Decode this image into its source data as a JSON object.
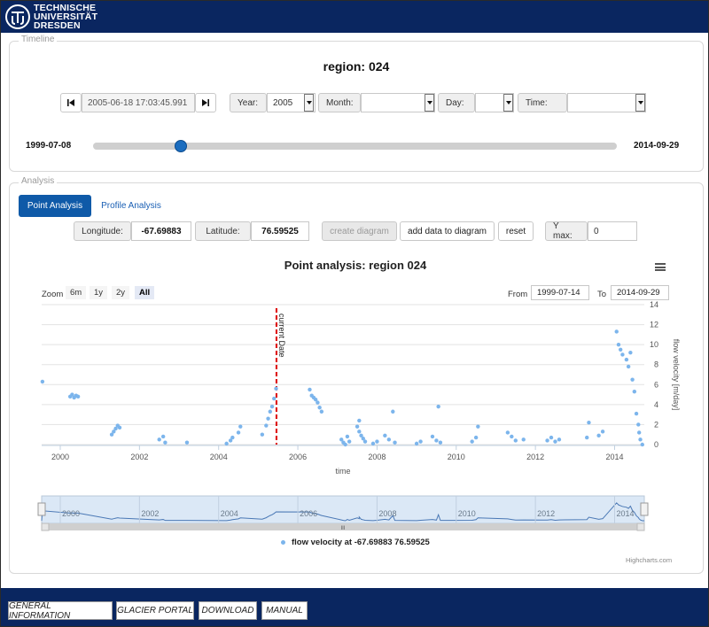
{
  "logo": {
    "line1": "TECHNISCHE",
    "line2": "UNIVERSITÄT",
    "line3": "DRESDEN"
  },
  "timeline": {
    "legend": "Timeline",
    "region_title": "region: 024",
    "current_datetime": "2005-06-18 17:03:45.991",
    "year": {
      "label": "Year:",
      "value": "2005"
    },
    "month": {
      "label": "Month:",
      "value": ""
    },
    "day": {
      "label": "Day:",
      "value": ""
    },
    "time": {
      "label": "Time:",
      "value": ""
    },
    "slider": {
      "start_label": "1999-07-08",
      "end_label": "2014-09-29",
      "position_fraction": 0.17
    }
  },
  "analysis": {
    "legend": "Analysis",
    "tabs": [
      "Point Analysis",
      "Profile Analysis"
    ],
    "longitude": {
      "label": "Longitude:",
      "value": "-67.69883"
    },
    "latitude": {
      "label": "Latitude:",
      "value": "76.59525"
    },
    "buttons": {
      "create": "create diagram",
      "add": "add data to diagram",
      "reset": "reset"
    },
    "ymax": {
      "label": "Y max:",
      "value": "0"
    }
  },
  "chart": {
    "zoom_label": "Zoom",
    "zoom_buttons": [
      "6m",
      "1y",
      "2y",
      "All"
    ],
    "from_label": "From",
    "from_value": "1999-07-14",
    "to_label": "To",
    "to_value": "2014-09-29",
    "legend_label": "flow velocity at -67.69883 76.59525",
    "credits": "Highcharts.com",
    "navigator_scroll_label": "III"
  },
  "chart_data": {
    "type": "scatter",
    "title": "Point analysis: region 024",
    "xlabel": "time",
    "ylabel": "flow velocity [m/day]",
    "xlim": [
      1999.53,
      2014.75
    ],
    "ylim": [
      0,
      14
    ],
    "yticks": [
      0,
      2,
      4,
      6,
      8,
      10,
      12,
      14
    ],
    "xticks": [
      2000,
      2002,
      2004,
      2006,
      2008,
      2010,
      2012,
      2014
    ],
    "plotline": {
      "x": 2005.46,
      "label": "current Date",
      "color": "#dd0000"
    },
    "series": [
      {
        "name": "flow velocity at -67.69883 76.59525",
        "color": "#7cb5ec",
        "points": [
          [
            1999.55,
            6.3
          ],
          [
            2000.25,
            4.8
          ],
          [
            2000.3,
            5.0
          ],
          [
            2000.35,
            4.7
          ],
          [
            2000.4,
            4.9
          ],
          [
            2000.45,
            4.8
          ],
          [
            2001.3,
            1.0
          ],
          [
            2001.35,
            1.3
          ],
          [
            2001.4,
            1.6
          ],
          [
            2001.45,
            1.9
          ],
          [
            2001.5,
            1.7
          ],
          [
            2002.5,
            0.5
          ],
          [
            2002.6,
            0.8
          ],
          [
            2002.65,
            0.2
          ],
          [
            2003.2,
            0.2
          ],
          [
            2004.2,
            0.1
          ],
          [
            2004.3,
            0.4
          ],
          [
            2004.35,
            0.7
          ],
          [
            2004.5,
            1.2
          ],
          [
            2004.55,
            1.8
          ],
          [
            2005.1,
            1.0
          ],
          [
            2005.2,
            1.9
          ],
          [
            2005.25,
            2.6
          ],
          [
            2005.3,
            3.3
          ],
          [
            2005.35,
            3.8
          ],
          [
            2005.4,
            4.6
          ],
          [
            2005.45,
            5.6
          ],
          [
            2006.3,
            5.5
          ],
          [
            2006.35,
            4.9
          ],
          [
            2006.4,
            4.7
          ],
          [
            2006.45,
            4.5
          ],
          [
            2006.5,
            4.2
          ],
          [
            2006.55,
            3.7
          ],
          [
            2006.6,
            3.3
          ],
          [
            2007.1,
            0.5
          ],
          [
            2007.15,
            0.2
          ],
          [
            2007.2,
            0.0
          ],
          [
            2007.25,
            0.8
          ],
          [
            2007.3,
            0.3
          ],
          [
            2007.5,
            1.8
          ],
          [
            2007.55,
            1.3
          ],
          [
            2007.6,
            0.9
          ],
          [
            2007.65,
            0.6
          ],
          [
            2007.7,
            0.3
          ],
          [
            2007.55,
            2.4
          ],
          [
            2007.9,
            0.1
          ],
          [
            2008.0,
            0.3
          ],
          [
            2008.2,
            0.9
          ],
          [
            2008.3,
            0.5
          ],
          [
            2008.4,
            3.3
          ],
          [
            2008.45,
            0.2
          ],
          [
            2009.0,
            0.1
          ],
          [
            2009.1,
            0.3
          ],
          [
            2009.4,
            0.8
          ],
          [
            2009.5,
            0.4
          ],
          [
            2009.6,
            0.2
          ],
          [
            2009.55,
            3.8
          ],
          [
            2010.4,
            0.3
          ],
          [
            2010.5,
            0.7
          ],
          [
            2010.55,
            1.8
          ],
          [
            2011.3,
            1.2
          ],
          [
            2011.4,
            0.8
          ],
          [
            2011.5,
            0.4
          ],
          [
            2011.7,
            0.5
          ],
          [
            2012.3,
            0.4
          ],
          [
            2012.4,
            0.7
          ],
          [
            2012.5,
            0.3
          ],
          [
            2012.6,
            0.5
          ],
          [
            2013.3,
            0.7
          ],
          [
            2013.35,
            2.2
          ],
          [
            2013.6,
            0.9
          ],
          [
            2013.7,
            1.3
          ],
          [
            2014.05,
            11.3
          ],
          [
            2014.1,
            10.0
          ],
          [
            2014.15,
            9.5
          ],
          [
            2014.2,
            9.0
          ],
          [
            2014.3,
            8.5
          ],
          [
            2014.35,
            7.8
          ],
          [
            2014.4,
            9.2
          ],
          [
            2014.45,
            6.5
          ],
          [
            2014.5,
            5.3
          ],
          [
            2014.55,
            3.1
          ],
          [
            2014.6,
            2.0
          ],
          [
            2014.62,
            1.2
          ],
          [
            2014.65,
            0.5
          ],
          [
            2014.7,
            0.0
          ]
        ]
      }
    ],
    "navigator": {
      "xticks": [
        2000,
        2002,
        2004,
        2006,
        2008,
        2010,
        2012,
        2014
      ]
    }
  },
  "footer": {
    "buttons": [
      "GENERAL INFORMATION",
      "GLACIER PORTAL",
      "DOWNLOAD",
      "MANUAL"
    ]
  }
}
